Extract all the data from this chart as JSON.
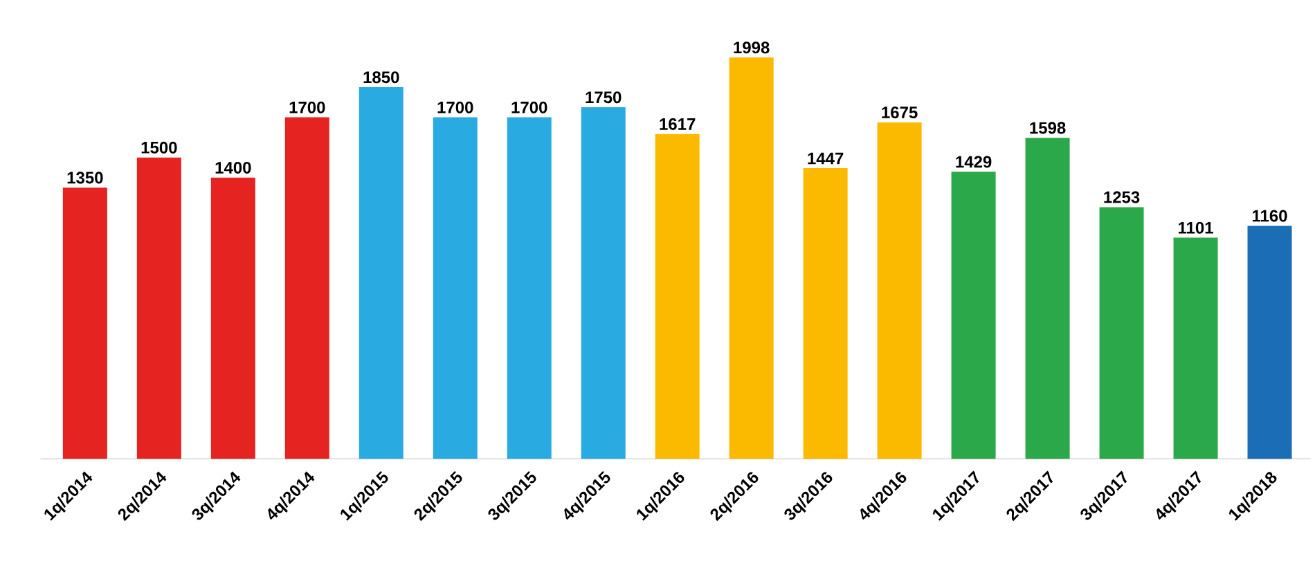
{
  "chart_data": {
    "type": "bar",
    "categories": [
      "1q/2014",
      "2q/2014",
      "3q/2014",
      "4q/2014",
      "1q/2015",
      "2q/2015",
      "3q/2015",
      "4q/2015",
      "1q/2016",
      "2q/2016",
      "3q/2016",
      "4q/2016",
      "1q/2017",
      "2q/2017",
      "3q/2017",
      "4q/2017",
      "1q/2018"
    ],
    "values": [
      1350,
      1500,
      1400,
      1700,
      1850,
      1700,
      1700,
      1750,
      1617,
      1998,
      1447,
      1675,
      1429,
      1598,
      1253,
      1101,
      1160
    ],
    "colors": [
      "#e52421",
      "#e52421",
      "#e52421",
      "#e52421",
      "#29abe2",
      "#29abe2",
      "#29abe2",
      "#29abe2",
      "#fbba00",
      "#fbba00",
      "#fbba00",
      "#fbba00",
      "#2ba84a",
      "#2ba84a",
      "#2ba84a",
      "#2ba84a",
      "#1b6db5"
    ],
    "data_labels": true
  }
}
